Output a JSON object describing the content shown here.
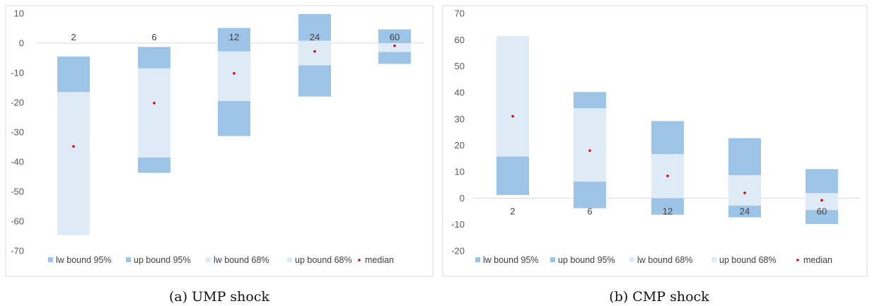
{
  "colors": {
    "dark_band": "#9dc3e6",
    "light_band": "#deebf7",
    "median": "#e00000",
    "axis": "#d9d9d9",
    "tick_text": "#595959"
  },
  "legend": [
    {
      "key": "lw95",
      "label": "lw bound 95%",
      "swatch": "dark"
    },
    {
      "key": "up95",
      "label": "up bound 95%",
      "swatch": "dark"
    },
    {
      "key": "lw68",
      "label": "lw bound 68%",
      "swatch": "light"
    },
    {
      "key": "up68",
      "label": "up bound 68%",
      "swatch": "light"
    },
    {
      "key": "median",
      "label": "median",
      "swatch": "dot"
    }
  ],
  "chart_data": [
    {
      "type": "bar",
      "caption": "(a) UMP shock",
      "categories": [
        "2",
        "6",
        "12",
        "24",
        "60"
      ],
      "ylim": [
        -70,
        10
      ],
      "yticks": [
        10,
        0,
        -10,
        -20,
        -30,
        -40,
        -50,
        -60,
        -70
      ],
      "category_label_position": "top",
      "series": [
        {
          "name": "lw bound 95%",
          "values": [
            -4.5,
            -1.3,
            5.1,
            9.8,
            4.6
          ]
        },
        {
          "name": "up bound 95%",
          "values": [
            -16.5,
            -8.5,
            -2.8,
            0.8,
            0.0
          ]
        },
        {
          "name": "lw bound 68%",
          "values": [
            -64.7,
            -38.5,
            -19.5,
            -7.5,
            -3.0
          ]
        },
        {
          "name": "up bound 68%",
          "values": [
            -64.7,
            -43.7,
            -31.3,
            -18.0,
            -7.0
          ]
        },
        {
          "name": "median",
          "values": [
            -34.8,
            -20.2,
            -10.2,
            -2.8,
            -0.9
          ]
        }
      ],
      "bands": [
        {
          "lower": -64.7,
          "upper": -16.5,
          "shade": "light"
        },
        {
          "lower": -16.5,
          "upper": -4.5,
          "shade": "dark"
        },
        {
          "lower": -43.7,
          "upper": -38.5,
          "shade": "dark"
        },
        {
          "lower": -38.5,
          "upper": -8.5,
          "shade": "light"
        },
        {
          "lower": -8.5,
          "upper": -1.3,
          "shade": "dark"
        },
        {
          "lower": -31.3,
          "upper": -19.5,
          "shade": "dark"
        },
        {
          "lower": -19.5,
          "upper": -2.8,
          "shade": "light"
        },
        {
          "lower": -2.8,
          "upper": 5.1,
          "shade": "dark"
        },
        {
          "lower": -18.0,
          "upper": -7.5,
          "shade": "dark"
        },
        {
          "lower": -7.5,
          "upper": 0.8,
          "shade": "light"
        },
        {
          "lower": 0.8,
          "upper": 9.8,
          "shade": "dark"
        },
        {
          "lower": -7.0,
          "upper": -3.0,
          "shade": "dark"
        },
        {
          "lower": -3.0,
          "upper": 0.0,
          "shade": "light"
        },
        {
          "lower": 0.0,
          "upper": 4.6,
          "shade": "dark"
        }
      ],
      "band_category": [
        0,
        0,
        1,
        1,
        1,
        2,
        2,
        2,
        3,
        3,
        3,
        4,
        4,
        4
      ],
      "median": [
        -34.8,
        -20.2,
        -10.2,
        -2.8,
        -0.9
      ],
      "grid": false,
      "legend_position": "bottom"
    },
    {
      "type": "bar",
      "caption": "(b) CMP shock",
      "categories": [
        "2",
        "6",
        "12",
        "24",
        "60"
      ],
      "ylim": [
        -20,
        70
      ],
      "yticks": [
        70,
        60,
        50,
        40,
        30,
        20,
        10,
        0,
        -10,
        -20
      ],
      "category_label_position": "bottom",
      "series": [
        {
          "name": "lw bound 95%",
          "values": [
            1.2,
            -3.8,
            -6.3,
            -7.3,
            -9.8
          ]
        },
        {
          "name": "up bound 95%",
          "values": [
            61.4,
            40.2,
            29.2,
            22.7,
            11.0
          ]
        },
        {
          "name": "lw bound 68%",
          "values": [
            15.8,
            6.3,
            0.0,
            -2.8,
            -4.5
          ]
        },
        {
          "name": "up bound 68%",
          "values": [
            61.4,
            34.1,
            16.7,
            8.7,
            1.9
          ]
        },
        {
          "name": "median",
          "values": [
            31.0,
            18.0,
            8.4,
            2.0,
            -0.8
          ]
        }
      ],
      "bands": [
        {
          "lower": 1.2,
          "upper": 15.8,
          "shade": "dark"
        },
        {
          "lower": 15.8,
          "upper": 61.4,
          "shade": "light"
        },
        {
          "lower": -3.8,
          "upper": 6.3,
          "shade": "dark"
        },
        {
          "lower": 6.3,
          "upper": 34.1,
          "shade": "light"
        },
        {
          "lower": 34.1,
          "upper": 40.2,
          "shade": "dark"
        },
        {
          "lower": -6.3,
          "upper": 0.0,
          "shade": "dark"
        },
        {
          "lower": 0.0,
          "upper": 16.7,
          "shade": "light"
        },
        {
          "lower": 16.7,
          "upper": 29.2,
          "shade": "dark"
        },
        {
          "lower": -7.3,
          "upper": -2.8,
          "shade": "dark"
        },
        {
          "lower": -2.8,
          "upper": 8.7,
          "shade": "light"
        },
        {
          "lower": 8.7,
          "upper": 22.7,
          "shade": "dark"
        },
        {
          "lower": -9.8,
          "upper": -4.5,
          "shade": "dark"
        },
        {
          "lower": -4.5,
          "upper": 1.9,
          "shade": "light"
        },
        {
          "lower": 1.9,
          "upper": 11.0,
          "shade": "dark"
        }
      ],
      "band_category": [
        0,
        0,
        1,
        1,
        1,
        2,
        2,
        2,
        3,
        3,
        3,
        4,
        4,
        4
      ],
      "median": [
        31.0,
        18.0,
        8.4,
        2.0,
        -0.8
      ],
      "grid": false,
      "legend_position": "bottom"
    }
  ]
}
